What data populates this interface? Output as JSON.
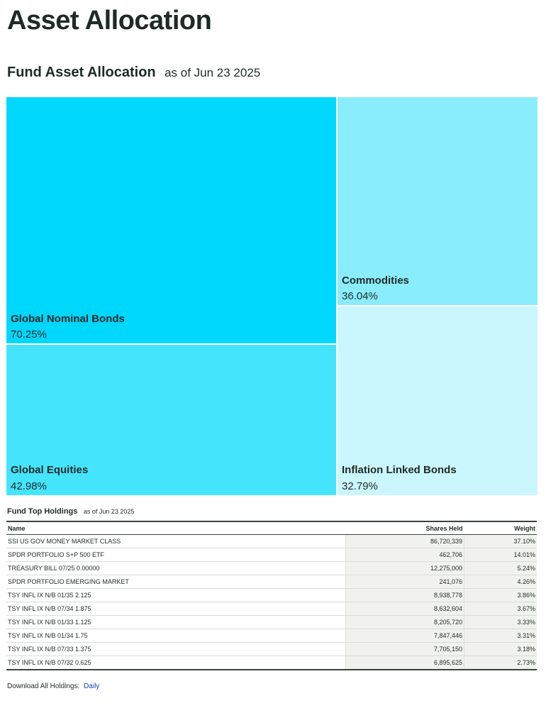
{
  "page": {
    "title": "Asset Allocation"
  },
  "allocation": {
    "title": "Fund Asset Allocation",
    "as_of": "as of Jun 23 2025",
    "colors": {
      "global_nominal_bonds": "#00d7fd",
      "global_equities": "#45e4fd",
      "commodities": "#8aedfd",
      "inflation_linked_bonds": "#caf6fd"
    },
    "items": [
      {
        "label": "Global Nominal Bonds",
        "value": "70.25%"
      },
      {
        "label": "Global Equities",
        "value": "42.98%"
      },
      {
        "label": "Commodities",
        "value": "36.04%"
      },
      {
        "label": "Inflation Linked Bonds",
        "value": "32.79%"
      }
    ]
  },
  "holdings": {
    "title": "Fund Top Holdings",
    "as_of": "as of Jun 23 2025",
    "columns": [
      "Name",
      "Shares Held",
      "Weight"
    ],
    "rows": [
      {
        "name": "SSI US GOV MONEY MARKET CLASS",
        "shares": "86,720,339",
        "weight": "37.10%"
      },
      {
        "name": "SPDR PORTFOLIO S+P 500 ETF",
        "shares": "462,706",
        "weight": "14.01%"
      },
      {
        "name": "TREASURY BILL 07/25 0.00000",
        "shares": "12,275,000",
        "weight": "5.24%"
      },
      {
        "name": "SPDR PORTFOLIO EMERGING MARKET",
        "shares": "241,076",
        "weight": "4.26%"
      },
      {
        "name": "TSY INFL IX N/B 01/35 2.125",
        "shares": "8,938,778",
        "weight": "3.86%"
      },
      {
        "name": "TSY INFL IX N/B 07/34 1.875",
        "shares": "8,632,604",
        "weight": "3.67%"
      },
      {
        "name": "TSY INFL IX N/B 01/33 1.125",
        "shares": "8,205,720",
        "weight": "3.33%"
      },
      {
        "name": "TSY INFL IX N/B 01/34 1.75",
        "shares": "7,847,446",
        "weight": "3.31%"
      },
      {
        "name": "TSY INFL IX N/B 07/33 1.375",
        "shares": "7,705,150",
        "weight": "3.18%"
      },
      {
        "name": "TSY INFL IX N/B 07/32 0.625",
        "shares": "6,895,625",
        "weight": "2.73%"
      }
    ]
  },
  "download": {
    "label": "Download All Holdings:",
    "link": "Daily"
  }
}
